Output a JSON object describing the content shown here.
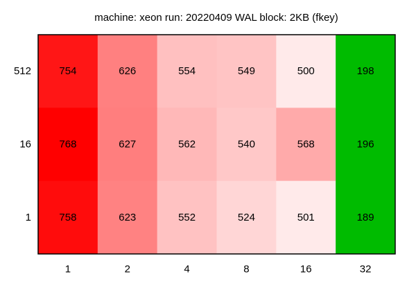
{
  "chart_data": {
    "type": "heatmap",
    "title": "machine: xeon run: 20220409 WAL block: 2KB (fkey)",
    "xlabel": "",
    "ylabel": "",
    "x_categories": [
      "1",
      "2",
      "4",
      "8",
      "16",
      "32"
    ],
    "y_categories": [
      "512",
      "16",
      "1"
    ],
    "values": [
      [
        754,
        626,
        554,
        549,
        500,
        198
      ],
      [
        768,
        627,
        562,
        540,
        568,
        196
      ],
      [
        758,
        623,
        552,
        524,
        501,
        189
      ]
    ],
    "cell_colors": [
      [
        "#ff1616",
        "#ff8080",
        "#ffc0c0",
        "#ffc4c4",
        "#ffeaea",
        "#00bb00"
      ],
      [
        "#ff0000",
        "#ff7e7e",
        "#ffb8b8",
        "#ffc8c8",
        "#ffaaaa",
        "#00bb00"
      ],
      [
        "#ff0c0c",
        "#ff8282",
        "#ffc2c2",
        "#ffd6d6",
        "#ffeaea",
        "#00bb00"
      ]
    ],
    "border_color": "#000000",
    "grid": false,
    "legend": "none"
  }
}
